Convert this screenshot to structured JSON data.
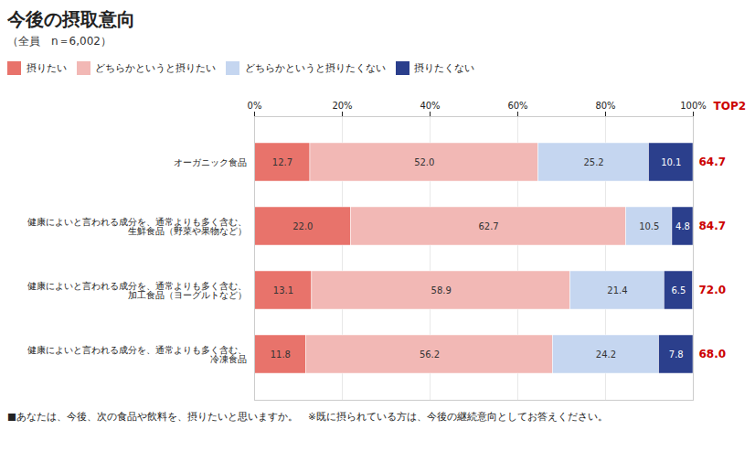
{
  "chart_data": {
    "type": "bar",
    "orientation": "horizontal",
    "stacked": true,
    "title": "今後の摂取意向",
    "subtitle": "（全員　n＝6,002）",
    "footer": "■あなたは、今後、次の食品や飲料を、摂りたいと思いますか。　※既に摂られている方は、今後の継続意向としてお答えください。",
    "categories": [
      "オーガニック食品",
      "健康によいと言われる成分を、通常よりも多く含む、\n生鮮食品（野菜や果物など）",
      "健康によいと言われる成分を、通常よりも多く含む、\n加工食品（ヨーグルトなど）",
      "健康によいと言われる成分を、通常よりも多く含む、\n冷凍食品"
    ],
    "series": [
      {
        "name": "摂りたい",
        "color": "#e8736b",
        "values": [
          12.7,
          22.0,
          13.1,
          11.8
        ],
        "value_labels": [
          "12.7",
          "22.0",
          "13.1",
          "11.8"
        ]
      },
      {
        "name": "どちらかというと摂りたい",
        "color": "#f2b8b5",
        "values": [
          52.0,
          62.7,
          58.9,
          56.2
        ],
        "value_labels": [
          "52.0",
          "62.7",
          "58.9",
          "56.2"
        ]
      },
      {
        "name": "どちらかというと摂りたくない",
        "color": "#c5d6f0",
        "values": [
          25.2,
          10.5,
          21.4,
          24.2
        ],
        "value_labels": [
          "25.2",
          "10.5",
          "21.4",
          "24.2"
        ]
      },
      {
        "name": "摂りたくない",
        "color": "#2b3f8c",
        "values": [
          10.1,
          4.8,
          6.5,
          7.8
        ],
        "value_labels": [
          "10.1",
          "4.8",
          "6.5",
          "7.8"
        ]
      }
    ],
    "top2": {
      "label": "TOP2",
      "color": "#cc0000",
      "values": [
        64.7,
        84.7,
        72.0,
        68.0
      ],
      "value_labels": [
        "64.7",
        "84.7",
        "72.0",
        "68.0"
      ]
    },
    "xlim": [
      0,
      100
    ],
    "xticks": [
      {
        "value": 0,
        "label": "0%"
      },
      {
        "value": 20,
        "label": "20%"
      },
      {
        "value": 40,
        "label": "40%"
      },
      {
        "value": 60,
        "label": "60%"
      },
      {
        "value": 80,
        "label": "80%"
      },
      {
        "value": 100,
        "label": "100%"
      }
    ],
    "grid": true,
    "data_labels": true,
    "legend": "top"
  }
}
